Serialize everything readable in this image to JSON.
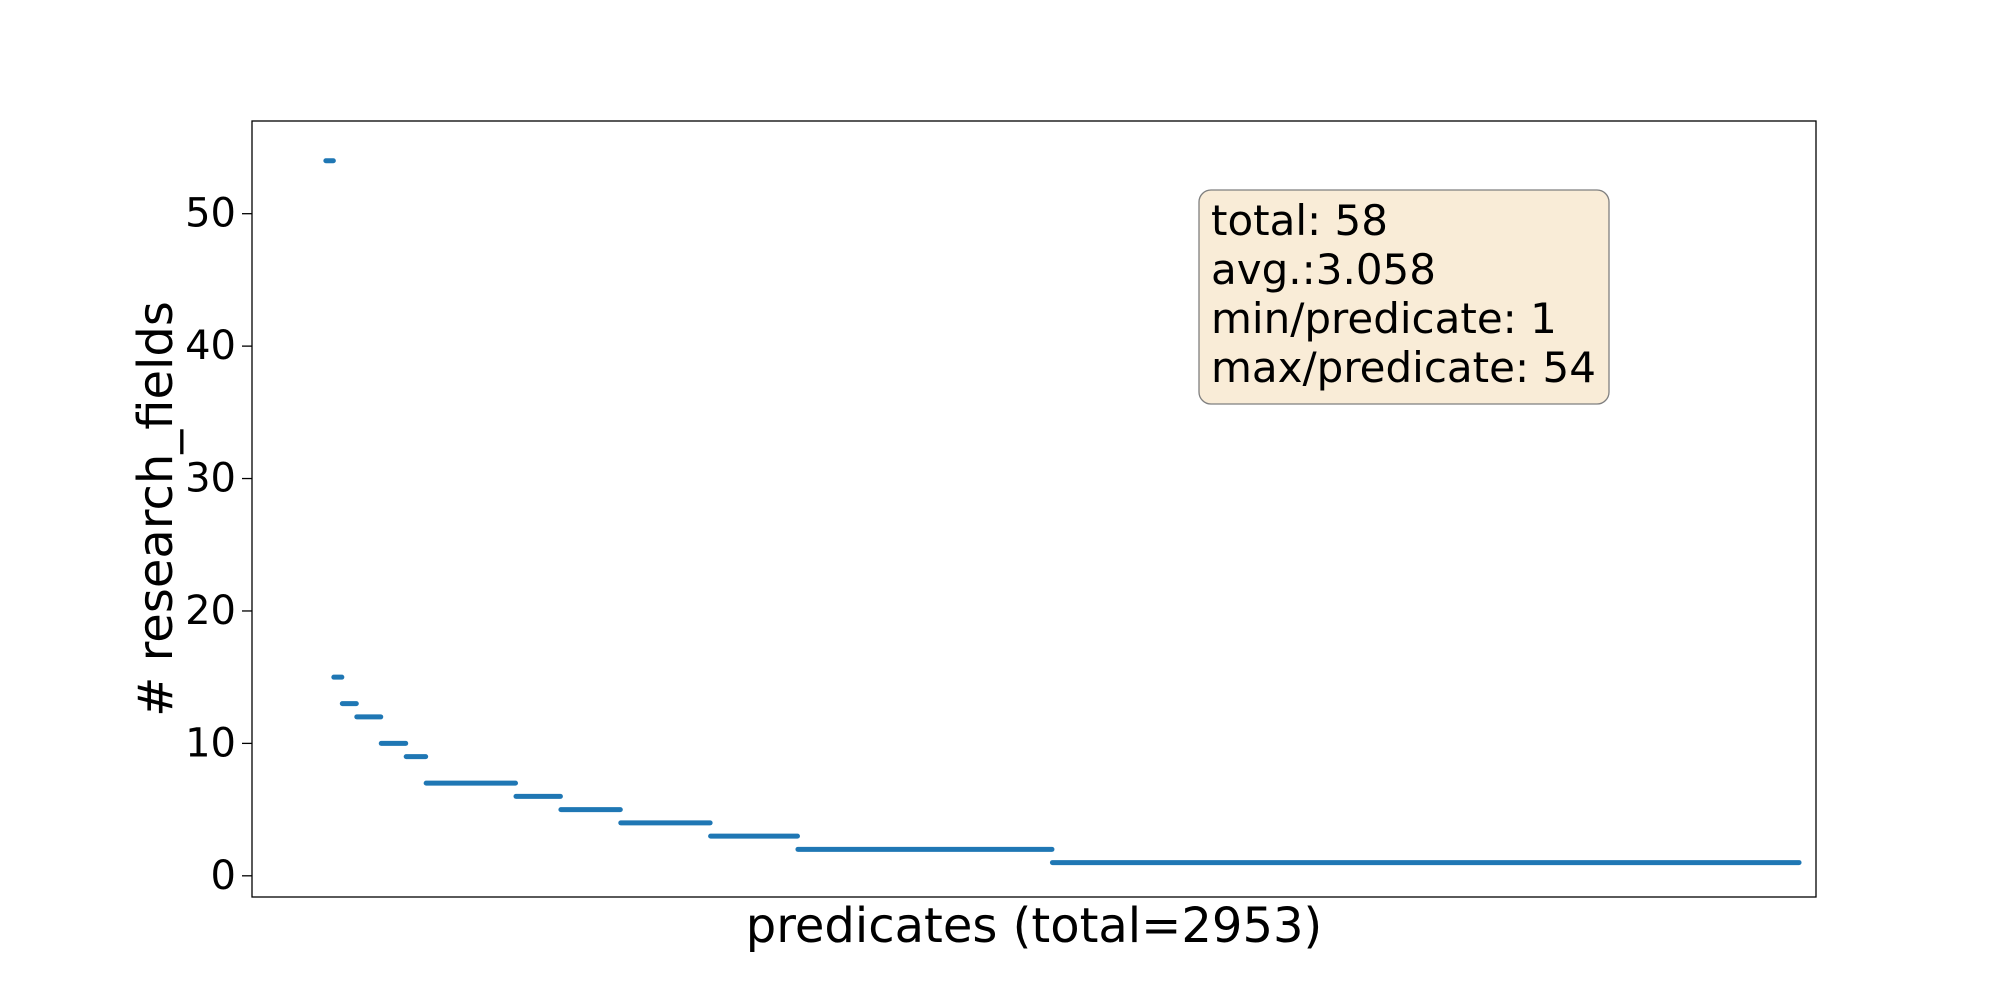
{
  "chart_data": {
    "type": "scatter",
    "title": "",
    "xlabel": "predicates (total=2953)",
    "ylabel": "# research_fields",
    "x_ticks_shown": false,
    "xlim": [
      -148,
      2986
    ],
    "ylim": [
      -1.6,
      57
    ],
    "yticks": [
      0,
      10,
      20,
      30,
      40,
      50
    ],
    "grid": false,
    "color": "#1f77b4",
    "segments": [
      {
        "x_start": 0,
        "x_end": 15,
        "y": 54
      },
      {
        "x_start": 16,
        "x_end": 32,
        "y": 15
      },
      {
        "x_start": 33,
        "x_end": 61,
        "y": 13
      },
      {
        "x_start": 62,
        "x_end": 110,
        "y": 12
      },
      {
        "x_start": 111,
        "x_end": 160,
        "y": 10
      },
      {
        "x_start": 161,
        "x_end": 200,
        "y": 9
      },
      {
        "x_start": 201,
        "x_end": 380,
        "y": 7
      },
      {
        "x_start": 381,
        "x_end": 470,
        "y": 6
      },
      {
        "x_start": 471,
        "x_end": 590,
        "y": 5
      },
      {
        "x_start": 591,
        "x_end": 770,
        "y": 4
      },
      {
        "x_start": 771,
        "x_end": 945,
        "y": 3
      },
      {
        "x_start": 946,
        "x_end": 1455,
        "y": 2
      },
      {
        "x_start": 1456,
        "x_end": 2952,
        "y": 1
      }
    ],
    "annotation": {
      "lines": [
        "total: 58",
        "avg.:3.058",
        "min/predicate: 1",
        "max/predicate: 54"
      ],
      "facecolor": "#f9ecd7",
      "edgecolor": "#7f7f7f",
      "placement": "upper-right"
    }
  }
}
